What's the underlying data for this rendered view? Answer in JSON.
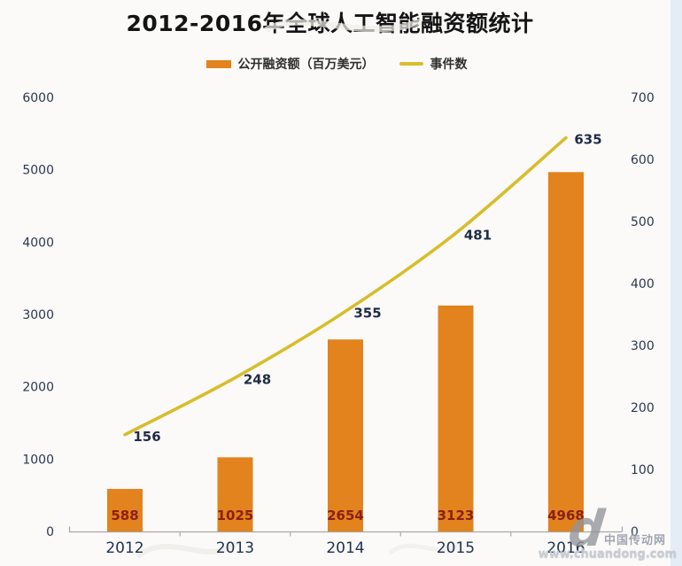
{
  "title": "2012-2016年全球人工智能融资额统计",
  "legend": [
    {
      "label": "公开融资额（百万美元）",
      "type": "bar",
      "color": "#E2831D"
    },
    {
      "label": "事件数",
      "type": "line",
      "color": "#D8BD2C"
    }
  ],
  "watermark": {
    "logo_letter": "d",
    "site_name": "中国传动网",
    "url": "www.chuandong.com"
  },
  "colors": {
    "bar": "#E2831D",
    "line": "#D8BD2C",
    "bar_value_label": "#8B2012",
    "axis_text": "#2B3750",
    "axis_line": "#A8A8A8",
    "background": "#FBFAF9",
    "edge_strip": "#E4EDF5"
  },
  "chart_data": {
    "type": "bar",
    "subtype": "combo-bar-line",
    "title": "2012-2016年全球人工智能融资额统计",
    "categories": [
      "2012",
      "2013",
      "2014",
      "2015",
      "2016"
    ],
    "series": [
      {
        "name": "公开融资额（百万美元）",
        "type": "bar",
        "axis": "left",
        "color": "#E2831D",
        "label_color": "#8B2012",
        "values": [
          588,
          1025,
          2654,
          3123,
          4968
        ]
      },
      {
        "name": "事件数",
        "type": "line",
        "axis": "right",
        "color": "#D8BD2C",
        "label_color": "#1F2C45",
        "values": [
          156,
          248,
          355,
          481,
          635
        ]
      }
    ],
    "left_axis": {
      "min": 0,
      "max": 6000,
      "step": 1000,
      "ticks": [
        "0",
        "1000",
        "2000",
        "3000",
        "4000",
        "5000",
        "6000"
      ]
    },
    "right_axis": {
      "min": 0,
      "max": 700,
      "step": 100,
      "ticks": [
        "0",
        "100",
        "200",
        "300",
        "400",
        "500",
        "600",
        "700"
      ]
    },
    "grid": false,
    "legend_position": "top",
    "xlabel": "",
    "ylabel": ""
  }
}
